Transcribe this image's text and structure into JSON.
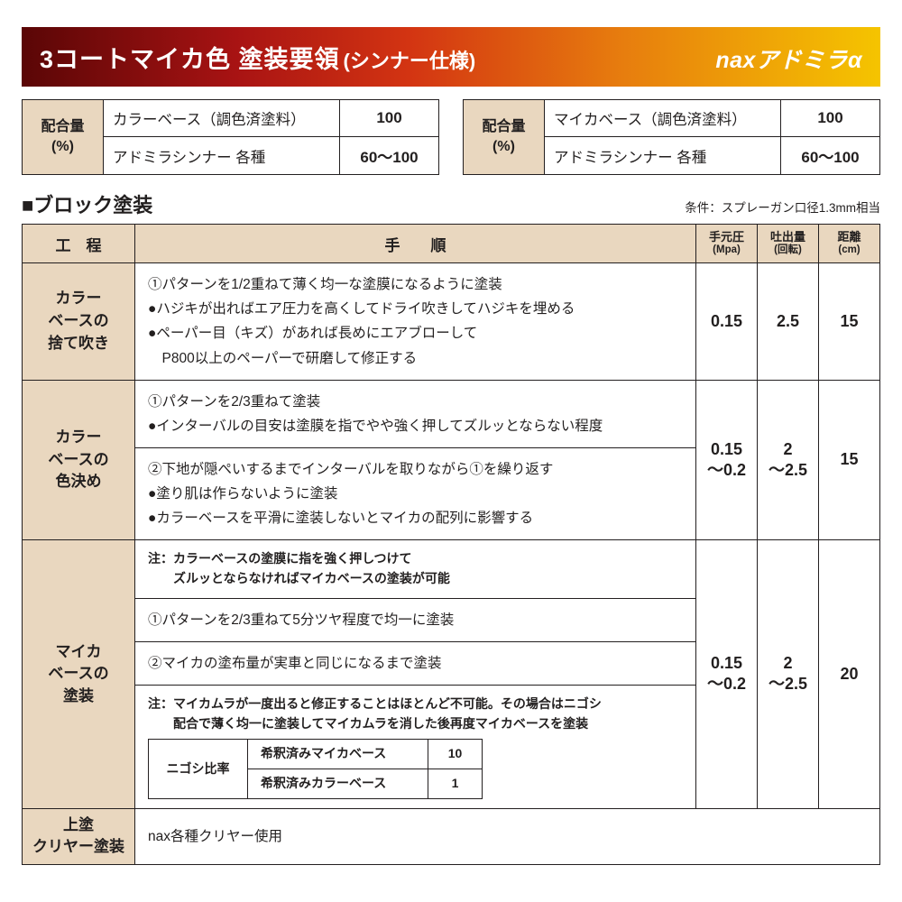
{
  "header": {
    "title": "3コートマイカ色 塗装要領",
    "subtitle": "(シンナー仕様)",
    "brand_prefix": "nax",
    "brand_main": "アドミラ",
    "brand_alpha": "α"
  },
  "mix_left": {
    "label_line1": "配合量",
    "label_line2": "(%)",
    "rows": [
      {
        "name": "カラーベース（調色済塗料）",
        "value": "100"
      },
      {
        "name": "アドミラシンナー 各種",
        "value": "60～100"
      }
    ]
  },
  "mix_right": {
    "label_line1": "配合量",
    "label_line2": "(%)",
    "rows": [
      {
        "name": "マイカベース（調色済塗料）",
        "value": "100"
      },
      {
        "name": "アドミラシンナー 各種",
        "value": "60～100"
      }
    ]
  },
  "section_title": "■ブロック塗装",
  "condition_text": "条件：スプレーガン口径1.3mm相当",
  "columns": {
    "proc": "工　程",
    "steps": "手　　順",
    "pressure": "手元圧",
    "pressure_unit": "(Mpa)",
    "output": "吐出量",
    "output_unit": "(回転)",
    "distance": "距離",
    "distance_unit": "(cm)"
  },
  "rows": [
    {
      "proc": "カラー\nベースの\n捨て吹き",
      "steps_html": "①パターンを1/2重ねて薄く均一な塗膜になるように塗装\n●ハジキが出ればエア圧力を高くしてドライ吹きしてハジキを埋める\n●ペーパー目（キズ）があれば長めにエアブローして\n　P800以上のペーパーで研磨して修正する",
      "pressure": "0.15",
      "output": "2.5",
      "distance": "15"
    },
    {
      "proc": "カラー\nベースの\n色決め",
      "block1": "①パターンを2/3重ねて塗装\n●インターバルの目安は塗膜を指でやや強く押してズルッとならない程度",
      "block2": "②下地が隠ぺいするまでインターバルを取りながら①を繰り返す\n●塗り肌は作らないように塗装\n●カラーベースを平滑に塗装しないとマイカの配列に影響する",
      "pressure": "0.15\n～0.2",
      "output": "2\n～2.5",
      "distance": "15"
    },
    {
      "proc": "マイカ\nベースの\n塗装",
      "note_top": "注：カラーベースの塗膜に指を強く押しつけて\n　　ズルッとならなければマイカベースの塗装が可能",
      "line1": "①パターンを2/3重ねて5分ツヤ程度で均一に塗装",
      "line2": "②マイカの塗布量が実車と同じになるまで塗装",
      "note_bottom": "注：マイカムラが一度出ると修正することはほとんど不可能。その場合はニゴシ\n　　配合で薄く均一に塗装してマイカムラを消した後再度マイカベースを塗装",
      "nigoshi_label": "ニゴシ比率",
      "nigoshi_rows": [
        {
          "name": "希釈済みマイカベース",
          "val": "10"
        },
        {
          "name": "希釈済みカラーベース",
          "val": "1"
        }
      ],
      "pressure": "0.15\n～0.2",
      "output": "2\n～2.5",
      "distance": "20"
    },
    {
      "proc": "上塗\nクリヤー塗装",
      "steps_html": "nax各種クリヤー使用"
    }
  ],
  "colors": {
    "header_bg_stops": [
      "#5a0606",
      "#a81313",
      "#d33412",
      "#e77d0e",
      "#f5c400"
    ],
    "header_text": "#ffffff",
    "cell_bg": "#e9d7bf",
    "border": "#231f20",
    "page_bg": "#ffffff"
  },
  "typography": {
    "header_title_pt": 27,
    "section_title_pt": 22,
    "table_header_pt": 17,
    "body_pt": 15.5,
    "small_note_pt": 14
  }
}
